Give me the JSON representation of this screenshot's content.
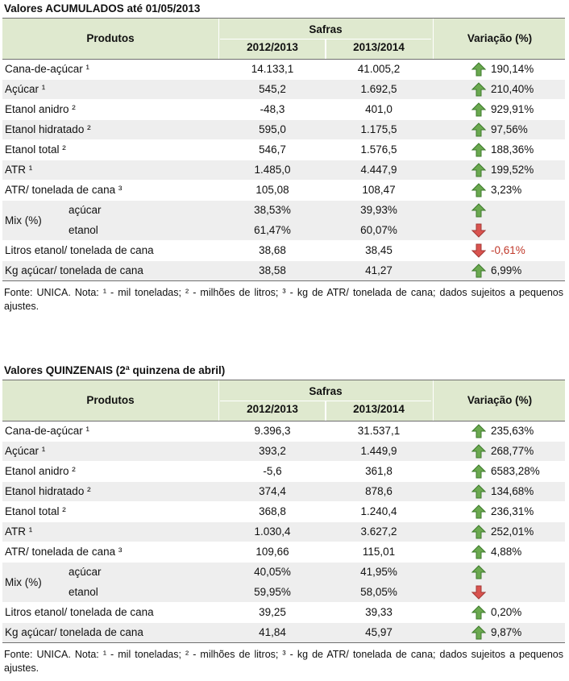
{
  "tables": [
    {
      "title": "Valores ACUMULADOS até 01/05/2013",
      "header": {
        "produtos": "Produtos",
        "safras": "Safras",
        "y1": "2012/2013",
        "y2": "2013/2014",
        "variacao": "Variação (%)"
      },
      "rows_top": [
        {
          "name": "Cana-de-açúcar ¹",
          "v1": "14.133,1",
          "v2": "41.005,2",
          "dir": "up",
          "var": "190,14%"
        },
        {
          "name": "Açúcar ¹",
          "v1": "545,2",
          "v2": "1.692,5",
          "dir": "up",
          "var": "210,40%"
        },
        {
          "name": "Etanol anidro ²",
          "v1": "-48,3",
          "v2": "401,0",
          "dir": "up",
          "var": "929,91%"
        },
        {
          "name": "Etanol hidratado ²",
          "v1": "595,0",
          "v2": "1.175,5",
          "dir": "up",
          "var": "97,56%"
        },
        {
          "name": "Etanol total ²",
          "v1": "546,7",
          "v2": "1.576,5",
          "dir": "up",
          "var": "188,36%"
        },
        {
          "name": "ATR ¹",
          "v1": "1.485,0",
          "v2": "4.447,9",
          "dir": "up",
          "var": "199,52%"
        },
        {
          "name": "ATR/ tonelada de cana ³",
          "v1": "105,08",
          "v2": "108,47",
          "dir": "up",
          "var": "3,23%"
        }
      ],
      "mix": {
        "label": "Mix (%)",
        "sub1": {
          "name": "açúcar",
          "v1": "38,53%",
          "v2": "39,93%",
          "dir": "up"
        },
        "sub2": {
          "name": "etanol",
          "v1": "61,47%",
          "v2": "60,07%",
          "dir": "down"
        }
      },
      "rows_bottom": [
        {
          "name": "Litros etanol/ tonelada de cana",
          "v1": "38,68",
          "v2": "38,45",
          "dir": "down",
          "var": "-0,61%"
        },
        {
          "name": "Kg açúcar/ tonelada de cana",
          "v1": "38,58",
          "v2": "41,27",
          "dir": "up",
          "var": "6,99%"
        }
      ],
      "footnote": "Fonte: UNICA. Nota: ¹ - mil toneladas; ² - milhões de litros; ³ - kg de ATR/ tonelada de cana; dados sujeitos a pequenos ajustes."
    },
    {
      "title": "Valores QUINZENAIS (2ª quinzena de abril)",
      "header": {
        "produtos": "Produtos",
        "safras": "Safras",
        "y1": "2012/2013",
        "y2": "2013/2014",
        "variacao": "Variação (%)"
      },
      "rows_top": [
        {
          "name": "Cana-de-açúcar ¹",
          "v1": "9.396,3",
          "v2": "31.537,1",
          "dir": "up",
          "var": "235,63%"
        },
        {
          "name": "Açúcar ¹",
          "v1": "393,2",
          "v2": "1.449,9",
          "dir": "up",
          "var": "268,77%"
        },
        {
          "name": "Etanol anidro ²",
          "v1": "-5,6",
          "v2": "361,8",
          "dir": "up",
          "var": "6583,28%"
        },
        {
          "name": "Etanol hidratado ²",
          "v1": "374,4",
          "v2": "878,6",
          "dir": "up",
          "var": "134,68%"
        },
        {
          "name": "Etanol total ²",
          "v1": "368,8",
          "v2": "1.240,4",
          "dir": "up",
          "var": "236,31%"
        },
        {
          "name": "ATR ¹",
          "v1": "1.030,4",
          "v2": "3.627,2",
          "dir": "up",
          "var": "252,01%"
        },
        {
          "name": "ATR/ tonelada de cana ³",
          "v1": "109,66",
          "v2": "115,01",
          "dir": "up",
          "var": "4,88%"
        }
      ],
      "mix": {
        "label": "Mix (%)",
        "sub1": {
          "name": "açúcar",
          "v1": "40,05%",
          "v2": "41,95%",
          "dir": "up"
        },
        "sub2": {
          "name": "etanol",
          "v1": "59,95%",
          "v2": "58,05%",
          "dir": "down"
        }
      },
      "rows_bottom": [
        {
          "name": "Litros etanol/ tonelada de cana",
          "v1": "39,25",
          "v2": "39,33",
          "dir": "up",
          "var": "0,20%"
        },
        {
          "name": "Kg açúcar/ tonelada de cana",
          "v1": "41,84",
          "v2": "45,97",
          "dir": "up",
          "var": "9,87%"
        }
      ],
      "footnote": "Fonte: UNICA. Nota: ¹ - mil toneladas; ² - milhões de litros; ³ - kg de ATR/ tonelada de cana; dados sujeitos a pequenos ajustes."
    }
  ],
  "colors": {
    "header_bg": "#dfe9cf",
    "row_shade": "#eeeeee",
    "arrow_up": "#6aa84f",
    "arrow_down": "#d9534f",
    "negative_text": "#c0392b"
  }
}
